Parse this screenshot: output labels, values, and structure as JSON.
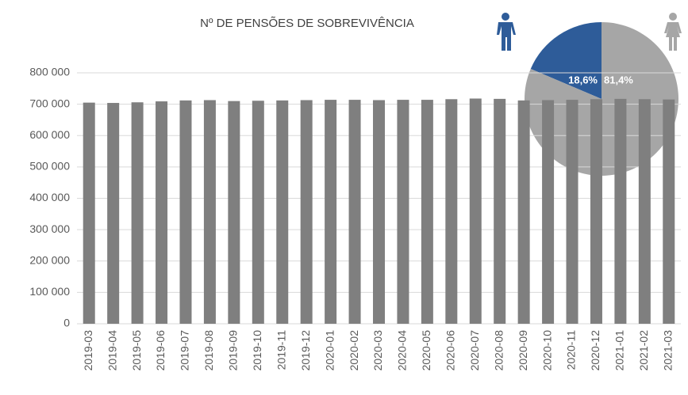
{
  "chart_data": [
    {
      "type": "bar",
      "title": "Nº DE PENSÕES DE SOBREVIVÊNCIA",
      "categories": [
        "2019-03",
        "2019-04",
        "2019-05",
        "2019-06",
        "2019-07",
        "2019-08",
        "2019-09",
        "2019-10",
        "2019-11",
        "2019-12",
        "2020-01",
        "2020-02",
        "2020-03",
        "2020-04",
        "2020-05",
        "2020-06",
        "2020-07",
        "2020-08",
        "2020-09",
        "2020-10",
        "2020-11",
        "2020-12",
        "2021-01",
        "2021-02",
        "2021-03"
      ],
      "values": [
        705000,
        704000,
        706000,
        709000,
        712000,
        713000,
        710000,
        711000,
        712000,
        713000,
        714000,
        714000,
        713000,
        714000,
        714000,
        716000,
        718000,
        717000,
        712000,
        713000,
        714000,
        716000,
        717000,
        716000,
        715000
      ],
      "color": "#7f7f7f",
      "ylim": [
        0,
        800000
      ],
      "yticks": [
        0,
        {
          "value": 100000,
          "label": "100 000"
        },
        {
          "value": 200000,
          "label": "200 000"
        },
        {
          "value": 300000,
          "label": "300 000"
        },
        {
          "value": 400000,
          "label": "400 000"
        },
        {
          "value": 500000,
          "label": "500 000"
        },
        {
          "value": 600000,
          "label": "600 000"
        },
        {
          "value": 700000,
          "label": "700 000"
        },
        {
          "value": 800000,
          "label": "800 000"
        }
      ],
      "grid": true
    },
    {
      "type": "pie",
      "values": [
        18.6,
        81.4
      ],
      "value_labels": [
        "18,6%",
        "81,4%"
      ],
      "colors": [
        "#2e5c99",
        "#a6a6a6"
      ]
    }
  ]
}
